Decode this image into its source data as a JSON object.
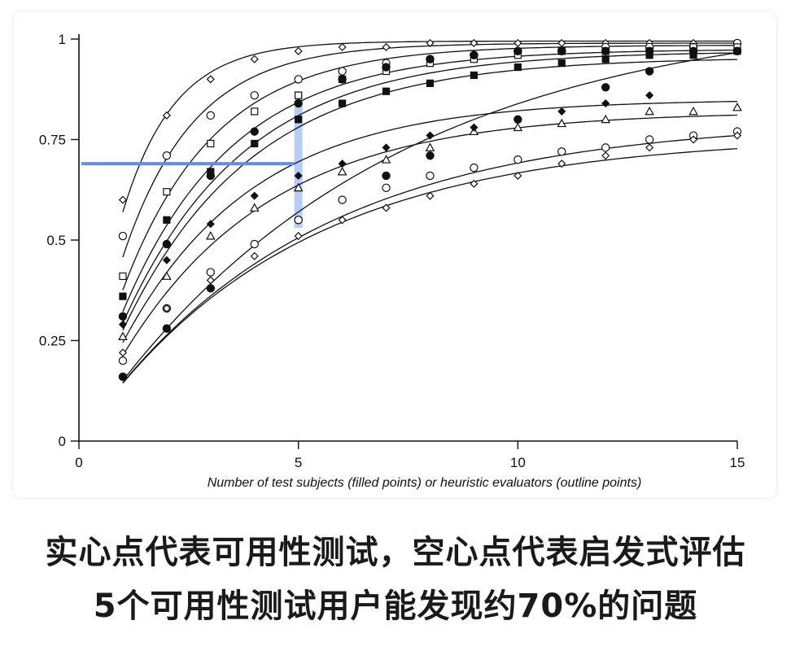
{
  "captions": {
    "line1": "实心点代表可用性测试，空心点代表启发式评估",
    "line2": "5个可用性测试用户能发现约70%的问题"
  },
  "colors": {
    "highlight_line": "#5b8ff0",
    "highlight_band": "#9ebcf2",
    "ink": "#111111"
  },
  "chart_data": {
    "type": "scatter",
    "xlabel": "Number of test subjects (filled points) or heuristic evaluators (outline points)",
    "ylabel": "",
    "xlim": [
      0,
      15
    ],
    "ylim": [
      0,
      1
    ],
    "x_ticks": [
      0,
      5,
      10,
      15
    ],
    "x_tick_labels": [
      "0",
      "5",
      "10",
      "15"
    ],
    "y_ticks": [
      0,
      0.25,
      0.5,
      0.75,
      1
    ],
    "y_tick_labels": [
      "0",
      "0.25",
      "0.5",
      "0.75",
      "1"
    ],
    "grid": false,
    "annotation": {
      "horizontal_line_y": 0.69,
      "horizontal_line_x_range": [
        0,
        5
      ],
      "vertical_band_x": 5,
      "vertical_band_y_range": [
        0.53,
        0.87
      ]
    },
    "series": [
      {
        "marker": "diamond-open",
        "x": [
          1,
          2,
          3,
          4,
          5,
          6,
          7,
          8,
          9,
          10,
          11,
          12,
          13,
          14,
          15
        ],
        "y": [
          0.6,
          0.81,
          0.9,
          0.95,
          0.97,
          0.98,
          0.98,
          0.99,
          0.99,
          0.99,
          0.99,
          0.99,
          0.99,
          0.99,
          0.99
        ]
      },
      {
        "marker": "circle-open",
        "x": [
          1,
          2,
          3,
          4,
          5,
          6,
          7,
          8,
          9,
          10,
          11,
          12,
          13,
          14,
          15
        ],
        "y": [
          0.51,
          0.71,
          0.81,
          0.86,
          0.9,
          0.92,
          0.94,
          0.95,
          0.96,
          0.97,
          0.97,
          0.98,
          0.98,
          0.98,
          0.99
        ]
      },
      {
        "marker": "square-open",
        "x": [
          1,
          2,
          3,
          4,
          5,
          6,
          7,
          8,
          9,
          10,
          11,
          12,
          13,
          14,
          15
        ],
        "y": [
          0.41,
          0.62,
          0.74,
          0.82,
          0.86,
          0.9,
          0.92,
          0.94,
          0.95,
          0.96,
          0.97,
          0.97,
          0.97,
          0.98,
          0.98
        ]
      },
      {
        "marker": "square-filled",
        "x": [
          1,
          2,
          3,
          4,
          5,
          6,
          7,
          8,
          9,
          10,
          11,
          12,
          13,
          14,
          15
        ],
        "y": [
          0.36,
          0.55,
          0.67,
          0.74,
          0.8,
          0.84,
          0.87,
          0.89,
          0.91,
          0.93,
          0.94,
          0.95,
          0.96,
          0.96,
          0.97
        ]
      },
      {
        "marker": "triangle-open",
        "x": [
          1,
          2,
          3,
          4,
          5,
          6,
          7,
          8,
          9,
          10,
          11,
          12,
          13,
          14,
          15
        ],
        "y": [
          0.26,
          0.41,
          0.51,
          0.58,
          0.63,
          0.67,
          0.7,
          0.73,
          0.77,
          0.78,
          0.79,
          0.8,
          0.82,
          0.82,
          0.83
        ]
      },
      {
        "marker": "circle-filled",
        "x": [
          1,
          2,
          3,
          4,
          5,
          6,
          7,
          8,
          9,
          10,
          11,
          12,
          13,
          14,
          15
        ],
        "y": [
          0.31,
          0.49,
          0.66,
          0.77,
          0.84,
          0.9,
          0.93,
          0.95,
          0.96,
          0.97,
          0.97,
          0.97,
          0.97,
          0.97,
          0.97
        ]
      },
      {
        "marker": "diamond-filled",
        "x": [
          1,
          2,
          3,
          4,
          5,
          6,
          7,
          8,
          9,
          10,
          11,
          12,
          13
        ],
        "y": [
          0.29,
          0.45,
          0.54,
          0.61,
          0.66,
          0.69,
          0.73,
          0.76,
          0.78,
          0.8,
          0.82,
          0.84,
          0.86
        ]
      },
      {
        "marker": "circle-filled",
        "x": [
          1,
          2,
          3,
          5,
          7,
          8,
          10,
          12,
          13,
          15
        ],
        "y": [
          0.16,
          0.28,
          0.38,
          0.55,
          0.66,
          0.71,
          0.8,
          0.88,
          0.92,
          0.97
        ]
      },
      {
        "marker": "circle-open",
        "x": [
          1,
          2,
          3,
          4,
          5,
          6,
          7,
          8,
          9,
          10,
          11,
          12,
          13,
          14,
          15
        ],
        "y": [
          0.2,
          0.33,
          0.42,
          0.49,
          0.55,
          0.6,
          0.63,
          0.66,
          0.68,
          0.7,
          0.72,
          0.73,
          0.75,
          0.76,
          0.77
        ]
      },
      {
        "marker": "diamond-open",
        "x": [
          1,
          2,
          3,
          4,
          5,
          6,
          7,
          8,
          9,
          10,
          11,
          12,
          13,
          14,
          15
        ],
        "y": [
          0.22,
          0.33,
          0.4,
          0.46,
          0.51,
          0.55,
          0.58,
          0.61,
          0.64,
          0.66,
          0.69,
          0.71,
          0.73,
          0.75,
          0.76
        ]
      }
    ],
    "curves": [
      {
        "asymptote": 0.995,
        "rate": 0.85
      },
      {
        "asymptote": 0.99,
        "rate": 0.62
      },
      {
        "asymptote": 0.985,
        "rate": 0.48
      },
      {
        "asymptote": 0.975,
        "rate": 0.4
      },
      {
        "asymptote": 0.97,
        "rate": 0.36
      },
      {
        "asymptote": 0.955,
        "rate": 0.34
      },
      {
        "asymptote": 0.85,
        "rate": 0.34
      },
      {
        "asymptote": 0.82,
        "rate": 0.3
      },
      {
        "asymptote": 1.08,
        "rate": 0.15
      },
      {
        "asymptote": 0.8,
        "rate": 0.2
      },
      {
        "asymptote": 0.76,
        "rate": 0.21
      }
    ]
  }
}
